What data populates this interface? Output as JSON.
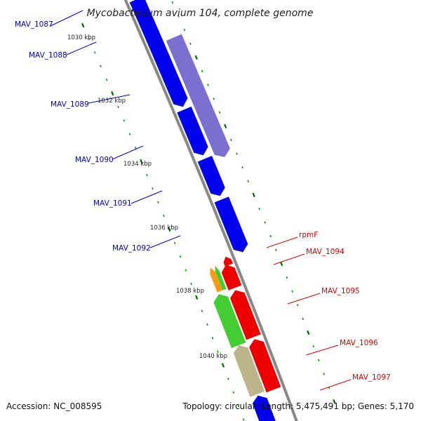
{
  "title": "Mycobacterium avium 104, complete genome",
  "accession_text": "Accession: NC_008595",
  "summary_text": "Topology: circular; Length: 5,475,491 bp; Genes: 5,170",
  "colors": {
    "forward_cds": "#0000ee",
    "forward_cds_alt": "#7b6fd0",
    "reverse_cds": "#ee0000",
    "reverse_green": "#44cc33",
    "reverse_orange": "#ff9911",
    "reverse_khaki": "#bdb58a",
    "forward_label": "#0000cc",
    "reverse_label": "#dd0000",
    "backbone": "#888888",
    "tick_major": "#006600",
    "tick_minor": "#009900"
  },
  "tick_labels": [
    "1030 kbp",
    "1032 kbp",
    "1034 kbp",
    "1036 kbp",
    "1038 kbp",
    "1040 kbp"
  ],
  "forward_genes": [
    "MAV_1087",
    "MAV_1088",
    "MAV_1089",
    "MAV_1090",
    "MAV_1091",
    "MAV_1092"
  ],
  "reverse_genes": [
    "rpmF",
    "MAV_1094",
    "MAV_1095",
    "MAV_1096",
    "MAV_1097"
  ]
}
